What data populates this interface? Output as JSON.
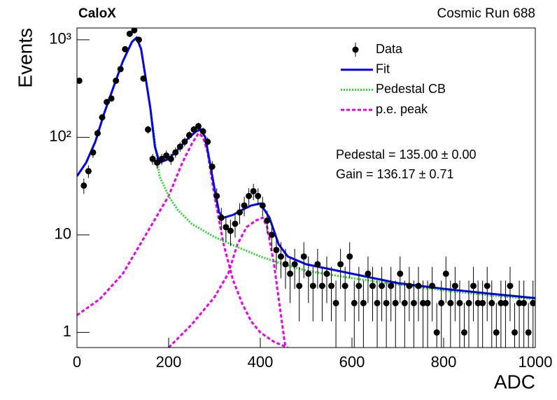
{
  "chart_data": {
    "type": "scatter",
    "title": "CaloX",
    "subtitle": "Cosmic Run 688",
    "x_label": "ADC",
    "y_label": "Events",
    "log_y": true,
    "legend": "upper right",
    "xlim": [
      0,
      1000
    ],
    "ylim": [
      0.7,
      1320
    ],
    "xticks": [
      0,
      200,
      400,
      600,
      800,
      1000
    ],
    "yticks": [
      1,
      10,
      {
        "value": 100,
        "label": "10²"
      },
      {
        "value": 1000,
        "label": "10³"
      }
    ],
    "annotations": [
      "Pedestal = 135.00 ± 0.00",
      "Gain = 136.17 ± 0.71"
    ],
    "data": {
      "name": "Data",
      "color": "#000000",
      "x": [
        5,
        15,
        25,
        35,
        45,
        55,
        65,
        75,
        85,
        95,
        105,
        115,
        125,
        135,
        145,
        155,
        165,
        175,
        185,
        195,
        205,
        215,
        225,
        235,
        245,
        255,
        265,
        275,
        285,
        295,
        305,
        315,
        325,
        335,
        345,
        355,
        365,
        375,
        385,
        395,
        405,
        415,
        425,
        435,
        445,
        455,
        465,
        475,
        485,
        495,
        505,
        515,
        525,
        535,
        545,
        555,
        565,
        575,
        585,
        595,
        605,
        615,
        625,
        635,
        645,
        655,
        665,
        675,
        685,
        695,
        705,
        715,
        725,
        735,
        745,
        755,
        765,
        775,
        785,
        795,
        805,
        815,
        825,
        835,
        845,
        855,
        865,
        875,
        885,
        895,
        905,
        915,
        925,
        935,
        945,
        955,
        965,
        975,
        985,
        995
      ],
      "values": [
        380,
        32,
        45,
        70,
        110,
        160,
        230,
        250,
        380,
        500,
        800,
        1150,
        1250,
        1000,
        400,
        120,
        60,
        55,
        60,
        65,
        60,
        70,
        80,
        90,
        105,
        120,
        130,
        115,
        90,
        50,
        25,
        15,
        12,
        11,
        13,
        17,
        20,
        25,
        28,
        25,
        20,
        14,
        10,
        7,
        6,
        5,
        4,
        5,
        3,
        6,
        4,
        3,
        5,
        3,
        4,
        3,
        2,
        5,
        3,
        6,
        2,
        3,
        2,
        4,
        3,
        2,
        3,
        2,
        3,
        2,
        4,
        2,
        3,
        2,
        3,
        2,
        2,
        3,
        1,
        2,
        4,
        2,
        3,
        2,
        1,
        2,
        3,
        2,
        2,
        3,
        2,
        1,
        2,
        2,
        3,
        1,
        2,
        2,
        1,
        2
      ],
      "errors": [
        19.5,
        5.7,
        6.7,
        8.4,
        10.5,
        12.6,
        15.2,
        15.8,
        19.5,
        22.4,
        28.3,
        33.9,
        35.4,
        31.6,
        20,
        11,
        7.7,
        7.4,
        7.7,
        8.1,
        7.7,
        8.4,
        8.9,
        9.5,
        10.2,
        11,
        11.4,
        10.7,
        9.5,
        7.1,
        5,
        3.9,
        3.5,
        3.3,
        3.6,
        4.1,
        4.5,
        5,
        5.3,
        5,
        4.5,
        3.7,
        3.2,
        2.6,
        2.4,
        2.2,
        2,
        2.2,
        1.7,
        2.4,
        2,
        1.7,
        2.2,
        1.7,
        2,
        1.7,
        1.4,
        2.2,
        1.7,
        2.4,
        1.4,
        1.7,
        1.4,
        2,
        1.7,
        1.4,
        1.7,
        1.4,
        1.7,
        1.4,
        2,
        1.4,
        1.7,
        1.4,
        1.7,
        1.4,
        1.4,
        1.7,
        1,
        1.4,
        2,
        1.4,
        1.7,
        1.4,
        1,
        1.4,
        1.7,
        1.4,
        1.4,
        1.7,
        1.4,
        1,
        1.4,
        1.4,
        1.7,
        1,
        1.4,
        1.4,
        1,
        1.4
      ]
    },
    "series": [
      {
        "name": "Fit",
        "color": "#0000ff",
        "style": "solid",
        "x": [
          0,
          20,
          40,
          60,
          80,
          100,
          120,
          130,
          140,
          160,
          170,
          180,
          200,
          220,
          240,
          260,
          270,
          280,
          300,
          310,
          320,
          340,
          360,
          380,
          400,
          420,
          440,
          460,
          500,
          600,
          700,
          800,
          900,
          1000
        ],
        "values": [
          40,
          55,
          90,
          180,
          330,
          600,
          950,
          1050,
          800,
          200,
          80,
          55,
          60,
          75,
          95,
          115,
          120,
          100,
          30,
          17,
          15,
          16,
          18,
          20,
          21,
          15,
          8,
          6,
          5,
          4,
          3.2,
          2.8,
          2.5,
          2.25
        ]
      },
      {
        "name": "Pedestal CB",
        "color": "#22dd22",
        "style": "dotted",
        "x": [
          0,
          20,
          40,
          60,
          80,
          100,
          120,
          130,
          140,
          160,
          180,
          200,
          220,
          250,
          300,
          350,
          400,
          450,
          500,
          600,
          700,
          800,
          900,
          1000
        ],
        "values": [
          40,
          55,
          90,
          180,
          330,
          600,
          950,
          1050,
          800,
          200,
          40,
          25,
          18,
          13,
          9.5,
          7.5,
          6,
          5,
          4.3,
          3.6,
          3.1,
          2.7,
          2.4,
          2.2
        ]
      },
      {
        "name": "p.e. peak",
        "color": "#ee00ee",
        "style": "dashed",
        "curves": [
          {
            "x": [
              0,
              50,
              100,
              150,
              200,
              230,
              250,
              265,
              275,
              285,
              300,
              320,
              340,
              360,
              380,
              400,
              430,
              460
            ],
            "values": [
              1.5,
              2.2,
              4,
              10,
              25,
              55,
              85,
              110,
              100,
              70,
              25,
              8,
              3.5,
              2,
              1.3,
              1,
              0.8,
              0.7
            ]
          },
          {
            "x": [
              200,
              250,
              300,
              330,
              350,
              370,
              390,
              405,
              415,
              430,
              445,
              455
            ],
            "values": [
              0.7,
              1.2,
              2.3,
              4,
              8,
              12,
              14,
              15,
              12,
              5,
              1.5,
              0.7
            ]
          }
        ]
      }
    ]
  }
}
